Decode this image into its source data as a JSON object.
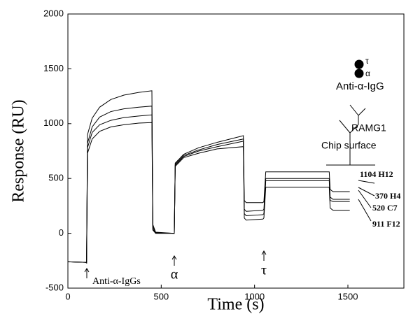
{
  "chart_data": {
    "type": "line",
    "x_label": "Time (s)",
    "y_label": "Response (RU)",
    "x": [
      0,
      95,
      100,
      105,
      130,
      170,
      230,
      300,
      380,
      450,
      455,
      470,
      565,
      570,
      575,
      620,
      700,
      800,
      940,
      945,
      955,
      1045,
      1050,
      1060,
      1400,
      1405,
      1420,
      1510
    ],
    "series": [
      {
        "name": "1104 H12",
        "color": "#000000",
        "values": [
          -260,
          -265,
          -270,
          900,
          1050,
          1150,
          1220,
          1260,
          1285,
          1300,
          80,
          10,
          0,
          0,
          640,
          720,
          780,
          830,
          890,
          300,
          280,
          280,
          290,
          560,
          560,
          400,
          380,
          380
        ]
      },
      {
        "name": "370 H4",
        "color": "#000000",
        "values": [
          -260,
          -265,
          -270,
          820,
          970,
          1060,
          1110,
          1135,
          1150,
          1160,
          60,
          5,
          0,
          0,
          630,
          710,
          760,
          810,
          860,
          220,
          200,
          210,
          220,
          500,
          500,
          330,
          310,
          310
        ]
      },
      {
        "name": "520 C7",
        "color": "#000000",
        "values": [
          -260,
          -265,
          -270,
          780,
          920,
          990,
          1030,
          1055,
          1070,
          1080,
          40,
          0,
          0,
          0,
          620,
          700,
          750,
          790,
          840,
          180,
          160,
          170,
          180,
          480,
          480,
          300,
          290,
          290
        ]
      },
      {
        "name": "911 F12",
        "color": "#000000",
        "values": [
          -260,
          -265,
          -270,
          730,
          860,
          930,
          970,
          990,
          1005,
          1010,
          30,
          0,
          0,
          0,
          610,
          690,
          730,
          770,
          790,
          140,
          120,
          130,
          140,
          420,
          420,
          230,
          210,
          210
        ]
      }
    ],
    "xlim": [
      0,
      1800
    ],
    "xticks": [
      0,
      500,
      1000,
      1500
    ],
    "ylim": [
      -500,
      2000
    ],
    "yticks": [
      -500,
      0,
      500,
      1000,
      1500,
      2000
    ],
    "annotations": {
      "anti_igg_injection": "Anti-α-IgGs",
      "alpha_injection": "α",
      "tau_injection": "τ",
      "inset_tau": "τ",
      "inset_alpha": "α",
      "inset_antibody": "Anti-α-IgG",
      "inset_ramg": "RAMG1",
      "inset_surface": "Chip surface"
    }
  }
}
